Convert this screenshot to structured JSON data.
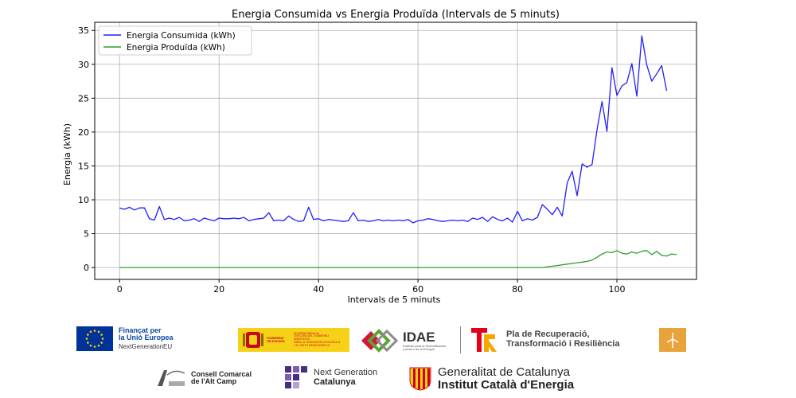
{
  "chart_data": {
    "type": "line",
    "title": "Energia Consumida vs Energia Produïda (Intervals de 5 minuts)",
    "xlabel": "Intervals de 5 minuts",
    "ylabel": "Energia (kWh)",
    "xlim": [
      -5,
      116
    ],
    "ylim": [
      -1.75,
      36.2
    ],
    "xticks": [
      0,
      20,
      40,
      60,
      80,
      100
    ],
    "yticks": [
      0,
      5,
      10,
      15,
      20,
      25,
      30,
      35
    ],
    "grid": true,
    "legend_position": "top-left",
    "series": [
      {
        "name": "Energia Consumida (kWh)",
        "color": "#1f1fff",
        "values": [
          8.8,
          8.6,
          8.9,
          8.5,
          8.8,
          8.8,
          7.2,
          7.0,
          9.0,
          7.1,
          7.3,
          7.1,
          7.4,
          6.9,
          7.0,
          7.2,
          6.8,
          7.3,
          7.1,
          6.9,
          7.3,
          7.2,
          7.2,
          7.3,
          7.2,
          7.4,
          6.9,
          7.1,
          7.2,
          7.3,
          8.1,
          6.9,
          7.0,
          6.9,
          7.6,
          7.1,
          6.8,
          6.9,
          8.9,
          7.1,
          7.2,
          6.9,
          7.1,
          7.0,
          6.9,
          6.8,
          6.9,
          8.1,
          6.9,
          7.0,
          6.8,
          6.9,
          7.1,
          6.9,
          7.0,
          6.9,
          7.0,
          6.9,
          7.1,
          6.6,
          6.9,
          7.0,
          7.2,
          7.1,
          6.9,
          6.8,
          6.9,
          7.0,
          6.9,
          7.0,
          6.8,
          7.3,
          7.1,
          7.4,
          6.8,
          7.5,
          7.1,
          6.9,
          7.3,
          6.7,
          8.3,
          6.9,
          7.2,
          7.0,
          7.4,
          9.3,
          8.6,
          7.8,
          8.9,
          7.6,
          12.5,
          14.2,
          10.6,
          15.3,
          14.8,
          15.2,
          20.3,
          24.5,
          20.1,
          29.5,
          25.4,
          26.8,
          27.3,
          30.1,
          25.3,
          34.2,
          29.9,
          27.5,
          28.6,
          29.8,
          26.1
        ]
      },
      {
        "name": "Energia Produïda (kWh)",
        "color": "#2ca02c",
        "values": [
          0,
          0,
          0,
          0,
          0,
          0,
          0,
          0,
          0,
          0,
          0,
          0,
          0,
          0,
          0,
          0,
          0,
          0,
          0,
          0,
          0,
          0,
          0,
          0,
          0,
          0,
          0,
          0,
          0,
          0,
          0,
          0,
          0,
          0,
          0,
          0,
          0,
          0,
          0,
          0,
          0,
          0,
          0,
          0,
          0,
          0,
          0,
          0,
          0,
          0,
          0,
          0,
          0,
          0,
          0,
          0,
          0,
          0,
          0,
          0,
          0,
          0,
          0,
          0,
          0,
          0,
          0,
          0,
          0,
          0,
          0,
          0,
          0,
          0,
          0,
          0,
          0,
          0,
          0,
          0,
          0,
          0,
          0,
          0,
          0,
          0,
          0.1,
          0.2,
          0.3,
          0.4,
          0.5,
          0.6,
          0.7,
          0.8,
          0.9,
          1.1,
          1.5,
          2.0,
          2.3,
          2.2,
          2.5,
          2.1,
          2.0,
          2.3,
          2.1,
          2.4,
          2.5,
          1.9,
          2.4,
          1.8,
          1.7,
          2.0,
          1.9
        ]
      }
    ]
  },
  "logos": {
    "eu_line1": "Finançat per",
    "eu_line2": "la Unió Europea",
    "eu_line3": "NextGenerationEU",
    "gov_line1": "GOBIERNO",
    "gov_line2": "DE ESPAÑA",
    "min_line1": "VICEPRESIDENCIA",
    "min_line2": "TERCERA DEL GOBIERNO",
    "min_line3": "MINISTERIO",
    "min_line4": "PARA LA TRANSICIÓN ECOLÓGICA",
    "min_line5": "Y EL RETO DEMOGRÁFICO",
    "idae_name": "IDAE",
    "idae_sub1": "Instituto para la Diversificación",
    "idae_sub2": "y Ahorro de la Energía",
    "plan_line1": "Pla de Recuperació,",
    "plan_line2": "Transformació i Resiliència",
    "consell_line1": "Consell Comarcal",
    "consell_line2": "de l'Alt Camp",
    "nextgen_line1": "Next Generation",
    "nextgen_line2": "Catalunya",
    "gencat_line1": "Generalitat de Catalunya",
    "gencat_line2": "Institut Català d'Energia",
    "colors": {
      "eu_blue": "#003399",
      "eu_star": "#ffcc00",
      "spain_yellow": "#f7d117",
      "spain_red": "#c60b1e",
      "idae_red": "#d4143a",
      "idae_green": "#5aa532",
      "plan_red": "#e3001b",
      "gencat_red": "#d0021b",
      "nextgen_purple": "#4b2d7f"
    }
  }
}
